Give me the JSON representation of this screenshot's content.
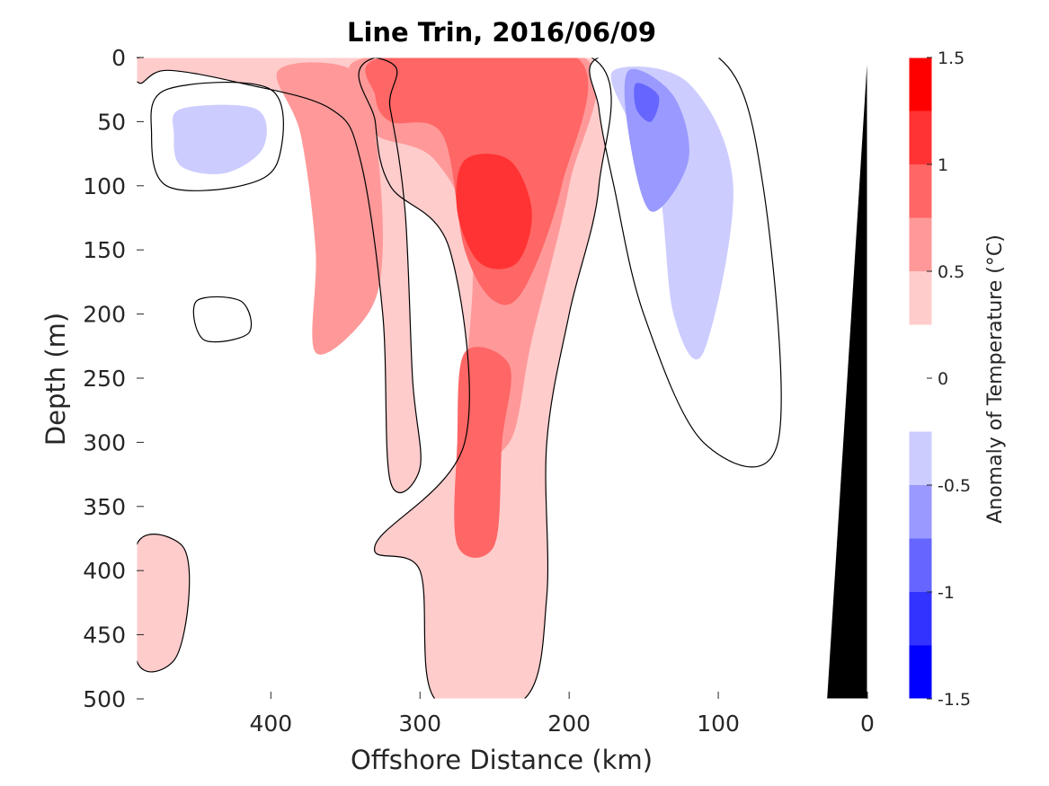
{
  "chart_data": {
    "type": "heatmap",
    "subtype": "filled-contour section",
    "title": "Line Trin, 2016/06/09",
    "xlabel": "Offshore Distance (km)",
    "ylabel": "Depth (m)",
    "xlim": [
      490,
      0
    ],
    "ylim": [
      0,
      500
    ],
    "x_reversed": true,
    "y_reversed": true,
    "x_ticks": [
      400,
      300,
      200,
      100,
      0
    ],
    "y_ticks": [
      0,
      50,
      100,
      150,
      200,
      250,
      300,
      350,
      400,
      450,
      500
    ],
    "colorbar": {
      "label": "Anomaly of Temperature (°C)",
      "ticks": [
        1.5,
        1,
        0.5,
        0,
        -0.5,
        -1,
        -1.5
      ],
      "tick_labels": [
        "1.5",
        "1",
        "0.5",
        "0",
        "-0.5",
        "-1",
        "-1.5"
      ],
      "levels": [
        -1.5,
        -1.25,
        -1.0,
        -0.75,
        -0.5,
        -0.25,
        0.25,
        0.5,
        0.75,
        1.0,
        1.25,
        1.5
      ],
      "colors": [
        "#0000ff",
        "#3333ff",
        "#6666ff",
        "#9999ff",
        "#ccccff",
        "#ffffff",
        "#ffcccc",
        "#ff9999",
        "#ff6666",
        "#ff3333",
        "#ff0000"
      ]
    },
    "bathymetry": {
      "color": "#000000",
      "surface_x_km": 0,
      "bottom_x_km": 27
    },
    "contour_line_color": "#000000",
    "features": [
      {
        "sign": "positive",
        "level": 0.25,
        "points": [
          [
            488,
            0
          ],
          [
            330,
            0
          ],
          [
            320,
            40
          ],
          [
            310,
            120
          ],
          [
            305,
            250
          ],
          [
            300,
            320
          ],
          [
            320,
            330
          ],
          [
            325,
            200
          ],
          [
            340,
            80
          ],
          [
            360,
            40
          ],
          [
            420,
            20
          ],
          [
            470,
            10
          ],
          [
            488,
            20
          ]
        ]
      },
      {
        "sign": "positive",
        "level": 0.25,
        "points": [
          [
            330,
            0
          ],
          [
            185,
            0
          ],
          [
            180,
            100
          ],
          [
            200,
            200
          ],
          [
            215,
            300
          ],
          [
            215,
            420
          ],
          [
            230,
            500
          ],
          [
            290,
            500
          ],
          [
            300,
            400
          ],
          [
            330,
            380
          ],
          [
            270,
            300
          ],
          [
            280,
            150
          ],
          [
            320,
            100
          ],
          [
            330,
            50
          ]
        ]
      },
      {
        "sign": "positive",
        "level": 0.5,
        "points": [
          [
            335,
            0
          ],
          [
            190,
            0
          ],
          [
            200,
            100
          ],
          [
            225,
            220
          ],
          [
            240,
            300
          ],
          [
            270,
            300
          ],
          [
            265,
            150
          ],
          [
            290,
            80
          ],
          [
            330,
            60
          ],
          [
            340,
            30
          ]
        ]
      },
      {
        "sign": "positive",
        "level": 0.5,
        "points": [
          [
            395,
            10
          ],
          [
            345,
            10
          ],
          [
            330,
            60
          ],
          [
            325,
            150
          ],
          [
            335,
            200
          ],
          [
            370,
            230
          ],
          [
            370,
            150
          ],
          [
            380,
            60
          ]
        ]
      },
      {
        "sign": "positive",
        "level": 0.75,
        "points": [
          [
            325,
            0
          ],
          [
            195,
            0
          ],
          [
            205,
            100
          ],
          [
            230,
            180
          ],
          [
            250,
            190
          ],
          [
            270,
            150
          ],
          [
            285,
            60
          ],
          [
            320,
            50
          ],
          [
            330,
            30
          ]
        ]
      },
      {
        "sign": "positive",
        "level": 0.75,
        "points": [
          [
            270,
            230
          ],
          [
            240,
            240
          ],
          [
            245,
            300
          ],
          [
            250,
            380
          ],
          [
            275,
            380
          ],
          [
            275,
            300
          ]
        ]
      },
      {
        "sign": "positive",
        "level": 1.0,
        "points": [
          [
            270,
            80
          ],
          [
            240,
            80
          ],
          [
            225,
            120
          ],
          [
            235,
            160
          ],
          [
            260,
            160
          ],
          [
            275,
            120
          ]
        ]
      },
      {
        "sign": "positive",
        "level": 0.25,
        "points": [
          [
            490,
            380
          ],
          [
            460,
            380
          ],
          [
            455,
            420
          ],
          [
            465,
            470
          ],
          [
            490,
            470
          ]
        ]
      },
      {
        "sign": "negative",
        "level": -0.25,
        "points": [
          [
            470,
            25
          ],
          [
            400,
            25
          ],
          [
            395,
            80
          ],
          [
            420,
            100
          ],
          [
            470,
            100
          ],
          [
            480,
            60
          ]
        ]
      },
      {
        "sign": "negative",
        "level": -0.5,
        "points": [
          [
            460,
            40
          ],
          [
            410,
            40
          ],
          [
            405,
            70
          ],
          [
            430,
            90
          ],
          [
            460,
            85
          ],
          [
            465,
            60
          ]
        ]
      },
      {
        "sign": "negative",
        "level": -0.25,
        "points": [
          [
            180,
            0
          ],
          [
            100,
            0
          ],
          [
            70,
            100
          ],
          [
            60,
            300
          ],
          [
            110,
            300
          ],
          [
            150,
            200
          ],
          [
            170,
            100
          ],
          [
            180,
            40
          ]
        ]
      },
      {
        "sign": "negative",
        "level": -0.5,
        "points": [
          [
            170,
            10
          ],
          [
            120,
            20
          ],
          [
            90,
            100
          ],
          [
            110,
            230
          ],
          [
            130,
            200
          ],
          [
            140,
            100
          ],
          [
            160,
            50
          ]
        ]
      },
      {
        "sign": "negative",
        "level": -0.75,
        "points": [
          [
            160,
            10
          ],
          [
            130,
            30
          ],
          [
            120,
            80
          ],
          [
            145,
            120
          ],
          [
            160,
            60
          ]
        ]
      },
      {
        "sign": "negative",
        "level": -1.0,
        "points": [
          [
            155,
            20
          ],
          [
            140,
            30
          ],
          [
            145,
            50
          ],
          [
            155,
            40
          ]
        ]
      },
      {
        "sign": "negative",
        "level": -0.25,
        "points": [
          [
            450,
            190
          ],
          [
            420,
            190
          ],
          [
            415,
            215
          ],
          [
            445,
            220
          ]
        ]
      }
    ]
  }
}
